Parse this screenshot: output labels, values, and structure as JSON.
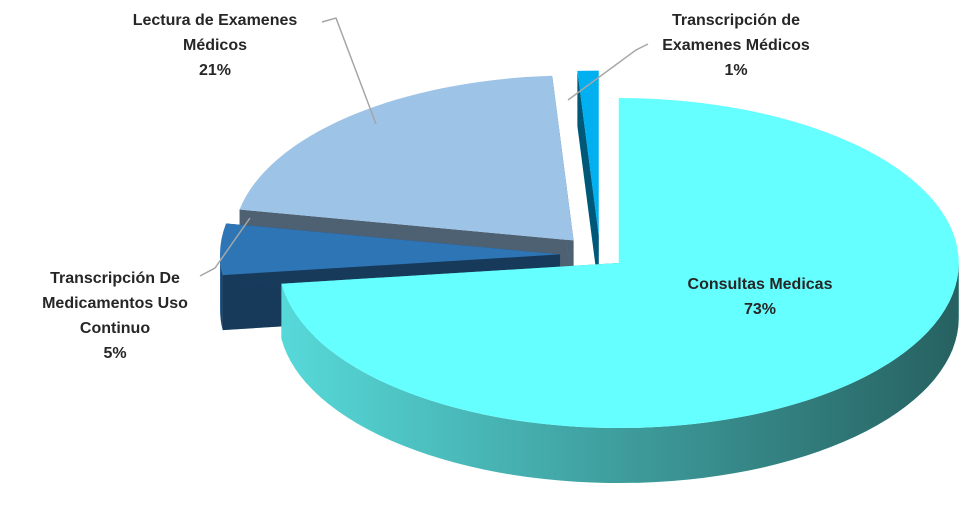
{
  "chart_data": {
    "type": "pie",
    "categories": [
      "Consultas Medicas",
      "Transcripción De Medicamentos Uso Continuo",
      "Lectura de Examenes Médicos",
      "Transcripción de Examenes Médicos"
    ],
    "values": [
      73,
      5,
      21,
      1
    ],
    "value_labels": [
      "73%",
      "5%",
      "21%",
      "1%"
    ],
    "colors": [
      "#66ffff",
      "#2e75b6",
      "#9dc3e6",
      "#00b0f0"
    ]
  }
}
